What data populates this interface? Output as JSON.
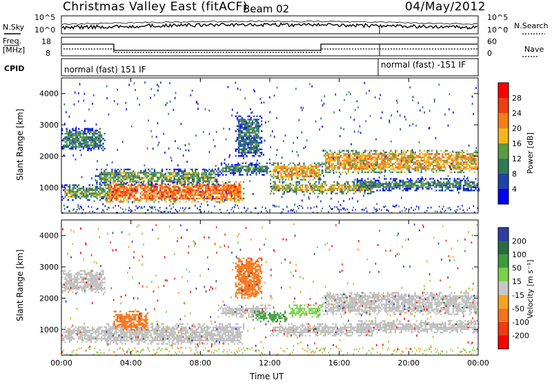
{
  "header": {
    "title": "Christmas Valley East (fitACF)",
    "beam": "Beam 02",
    "date": "04/May/2012"
  },
  "noise_panel": {
    "left_label": "N.Sky",
    "right_label": "N.Search",
    "tick_top": "10^5",
    "tick_bottom": "10^0"
  },
  "freq_panel": {
    "left_label_1": "Freq.",
    "left_label_2": "[MHz]",
    "right_label": "Nave",
    "left_ticks": [
      "18",
      "8"
    ],
    "right_ticks": [
      "60",
      "0"
    ]
  },
  "cpid_panel": {
    "label": "CPID",
    "mode_1": "normal (fast) 151 IF",
    "mode_2": "normal (fast) -151 IF"
  },
  "colors": {
    "power_scale": [
      "#0000ff",
      "#1c44a8",
      "#2f7a55",
      "#5c9b40",
      "#f3b61e",
      "#f57d17",
      "#f33d10",
      "#ff0000"
    ],
    "velocity_scale": [
      "#2b3fa6",
      "#2a6b3f",
      "#3a9d3a",
      "#7ad24a",
      "#c8c8c8",
      "#f5a41e",
      "#f5741a",
      "#f23a10",
      "#ff0000"
    ],
    "ground_scatter": "#bebebe"
  },
  "chart_data": [
    {
      "type": "heatmap",
      "panel": "power",
      "xlabel": "",
      "ylabel": "Slant Range [km]",
      "x_ticks": [
        "00:00",
        "04:00",
        "08:00",
        "12:00",
        "16:00",
        "20:00",
        "00:00"
      ],
      "xlim_hours": [
        0,
        24
      ],
      "y_ticks": [
        1000,
        2000,
        3000,
        4000
      ],
      "ylim": [
        180,
        4500
      ],
      "colorbar": {
        "label": "Power [dB]",
        "ticks": [
          4,
          8,
          12,
          16,
          20,
          24,
          28
        ],
        "range": [
          0,
          30
        ]
      },
      "echo_regions": [
        {
          "t_start": 0.0,
          "t_end": 3.0,
          "range_min": 600,
          "range_max": 1100,
          "power_dB": 12
        },
        {
          "t_start": 0.0,
          "t_end": 2.5,
          "range_min": 2200,
          "range_max": 2900,
          "power_dB": 10
        },
        {
          "t_start": 2.5,
          "t_end": 10.5,
          "range_min": 550,
          "range_max": 1200,
          "power_dB": 22
        },
        {
          "t_start": 2.0,
          "t_end": 9.0,
          "range_min": 1100,
          "range_max": 1600,
          "power_dB": 12
        },
        {
          "t_start": 9.0,
          "t_end": 12.0,
          "range_min": 1400,
          "range_max": 1800,
          "power_dB": 10
        },
        {
          "t_start": 10.0,
          "t_end": 11.5,
          "range_min": 2000,
          "range_max": 3300,
          "power_dB": 8
        },
        {
          "t_start": 12.0,
          "t_end": 15.0,
          "range_min": 1250,
          "range_max": 1800,
          "power_dB": 18
        },
        {
          "t_start": 12.0,
          "t_end": 18.0,
          "range_min": 800,
          "range_max": 1200,
          "power_dB": 16
        },
        {
          "t_start": 15.0,
          "t_end": 24.0,
          "range_min": 1500,
          "range_max": 2200,
          "power_dB": 18
        },
        {
          "t_start": 17.0,
          "t_end": 24.0,
          "range_min": 900,
          "range_max": 1300,
          "power_dB": 10
        }
      ]
    },
    {
      "type": "heatmap",
      "panel": "velocity",
      "xlabel": "Time UT",
      "ylabel": "Slant Range [km]",
      "x_ticks": [
        "00:00",
        "04:00",
        "08:00",
        "12:00",
        "16:00",
        "20:00",
        "00:00"
      ],
      "xlim_hours": [
        0,
        24
      ],
      "y_ticks": [
        1000,
        2000,
        3000,
        4000
      ],
      "ylim": [
        180,
        4500
      ],
      "colorbar": {
        "label": "Velocity [m s⁻¹]",
        "ticks": [
          "200",
          "100",
          "50",
          "15",
          "-15",
          "-50",
          "-100",
          "-200"
        ],
        "range": [
          -250,
          250
        ]
      },
      "echo_regions": [
        {
          "t_start": 0.0,
          "t_end": 3.0,
          "range_min": 600,
          "range_max": 1100,
          "velocity": 0
        },
        {
          "t_start": 0.0,
          "t_end": 2.5,
          "range_min": 2200,
          "range_max": 2900,
          "velocity": 0
        },
        {
          "t_start": 2.5,
          "t_end": 10.5,
          "range_min": 550,
          "range_max": 1200,
          "velocity": 0
        },
        {
          "t_start": 3.0,
          "t_end": 5.0,
          "range_min": 1000,
          "range_max": 1600,
          "velocity": -50
        },
        {
          "t_start": 9.0,
          "t_end": 12.0,
          "range_min": 1400,
          "range_max": 1800,
          "velocity": 0
        },
        {
          "t_start": 10.0,
          "t_end": 11.5,
          "range_min": 2000,
          "range_max": 3300,
          "velocity": -50
        },
        {
          "t_start": 11.0,
          "t_end": 13.0,
          "range_min": 1250,
          "range_max": 1600,
          "velocity": 50
        },
        {
          "t_start": 13.0,
          "t_end": 15.0,
          "range_min": 1400,
          "range_max": 1800,
          "velocity": 30
        },
        {
          "t_start": 12.0,
          "t_end": 18.0,
          "range_min": 800,
          "range_max": 1200,
          "velocity": 0
        },
        {
          "t_start": 15.0,
          "t_end": 24.0,
          "range_min": 1500,
          "range_max": 2200,
          "velocity": 0
        },
        {
          "t_start": 17.0,
          "t_end": 24.0,
          "range_min": 900,
          "range_max": 1300,
          "velocity": 0
        }
      ]
    }
  ]
}
